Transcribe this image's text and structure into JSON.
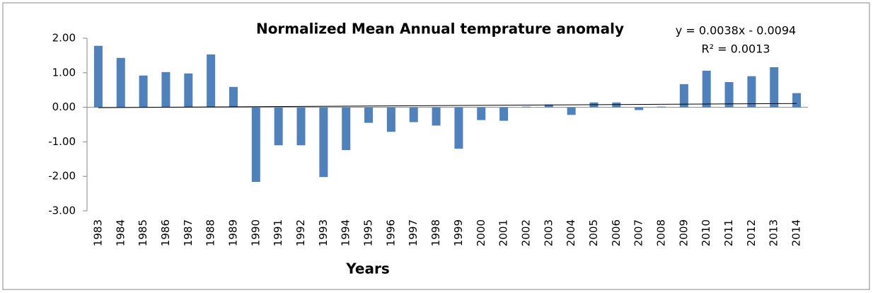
{
  "chart_data": {
    "type": "bar",
    "title": "Normalized Mean Annual  temprature anomaly",
    "x_label": "Years",
    "trendline": {
      "equation": "y = 0.0038x - 0.0094",
      "r2": "R² = 0.0013"
    },
    "categories": [
      "1983",
      "1984",
      "1985",
      "1986",
      "1987",
      "1988",
      "1989",
      "1990",
      "1991",
      "1992",
      "1993",
      "1994",
      "1995",
      "1996",
      "1997",
      "1998",
      "1999",
      "2000",
      "2001",
      "2002",
      "2003",
      "2004",
      "2005",
      "2006",
      "2007",
      "2008",
      "2009",
      "2010",
      "2011",
      "2012",
      "2013",
      "2014"
    ],
    "values": [
      1.78,
      1.43,
      0.92,
      1.02,
      0.98,
      1.53,
      0.59,
      -2.16,
      -1.1,
      -1.1,
      -2.02,
      -1.24,
      -0.45,
      -0.71,
      -0.43,
      -0.53,
      -1.2,
      -0.37,
      -0.39,
      0.02,
      0.08,
      -0.22,
      0.14,
      0.14,
      -0.08,
      0.02,
      0.67,
      1.06,
      0.73,
      0.9,
      1.16,
      0.41
    ],
    "color": "#4f81bd",
    "ylim": [
      -3,
      2
    ],
    "yticks": [
      {
        "value": -3,
        "label": "-3.00"
      },
      {
        "value": -2,
        "label": "-2.00"
      },
      {
        "value": -1,
        "label": "-1.00"
      },
      {
        "value": 0,
        "label": "0.00"
      },
      {
        "value": 1,
        "label": "1.00"
      },
      {
        "value": 2,
        "label": "2.00"
      }
    ],
    "grid": false
  }
}
